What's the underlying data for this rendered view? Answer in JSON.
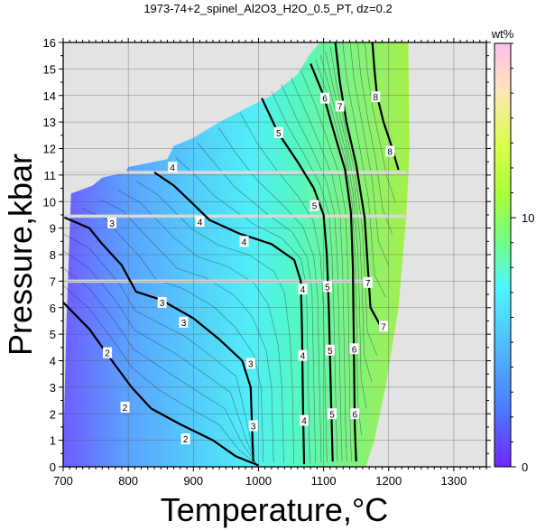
{
  "chart_data": {
    "type": "heatmap",
    "title": "1973-74+2_spinel_Al2O3_H2O_0.5_PT, dz=0.2",
    "xlabel": "Temperature,°C",
    "ylabel": "Pressure,kbar",
    "xlim": [
      700,
      1350
    ],
    "ylim": [
      0,
      16
    ],
    "x_ticks": [
      700,
      800,
      900,
      1000,
      1100,
      1200,
      1300
    ],
    "y_ticks": [
      0,
      1,
      2,
      3,
      4,
      5,
      6,
      7,
      8,
      9,
      10,
      11,
      12,
      13,
      14,
      15,
      16
    ],
    "grid": true,
    "colorbar": {
      "label": "wt%",
      "range": [
        0,
        17
      ],
      "ticks": [
        0,
        10
      ],
      "colormap": [
        "#6e28ff",
        "#4a7cff",
        "#4fc2ff",
        "#4cf5ff",
        "#6cff90",
        "#a6ff3a",
        "#d8ff4a",
        "#ffc0ee"
      ]
    },
    "contours": [
      {
        "level": 2,
        "points": [
          [
            700,
            6.2
          ],
          [
            740,
            5.2
          ],
          [
            775,
            4.0
          ],
          [
            805,
            3.0
          ],
          [
            835,
            2.2
          ],
          [
            880,
            1.6
          ],
          [
            930,
            1.0
          ],
          [
            965,
            0.4
          ],
          [
            1000,
            0.05
          ]
        ]
      },
      {
        "level": 3,
        "points": [
          [
            702,
            9.4
          ],
          [
            740,
            9.0
          ],
          [
            760,
            8.4
          ],
          [
            790,
            7.6
          ],
          [
            812,
            6.6
          ],
          [
            850,
            6.3
          ],
          [
            900,
            5.6
          ],
          [
            940,
            4.8
          ],
          [
            975,
            4.0
          ],
          [
            988,
            3.0
          ],
          [
            990,
            1.6
          ],
          [
            992,
            0.2
          ]
        ]
      },
      {
        "level": 4,
        "points": [
          [
            840,
            11.1
          ],
          [
            870,
            10.6
          ],
          [
            900,
            9.9
          ],
          [
            925,
            9.3
          ],
          [
            970,
            8.8
          ],
          [
            1020,
            8.4
          ],
          [
            1055,
            7.8
          ],
          [
            1065,
            7.0
          ],
          [
            1067,
            5.0
          ],
          [
            1068,
            3.0
          ],
          [
            1069,
            1.5
          ],
          [
            1070,
            0.1
          ]
        ]
      },
      {
        "level": 5,
        "points": [
          [
            1005,
            13.9
          ],
          [
            1030,
            12.6
          ],
          [
            1060,
            11.5
          ],
          [
            1085,
            10.5
          ],
          [
            1100,
            9.5
          ],
          [
            1105,
            8.0
          ],
          [
            1108,
            6.0
          ],
          [
            1110,
            4.0
          ],
          [
            1112,
            2.0
          ],
          [
            1114,
            0.2
          ]
        ]
      },
      {
        "level": 6,
        "points": [
          [
            1080,
            15.2
          ],
          [
            1100,
            14.0
          ],
          [
            1115,
            12.7
          ],
          [
            1133,
            11.2
          ],
          [
            1142,
            9.6
          ],
          [
            1145,
            7.5
          ],
          [
            1146,
            5.5
          ],
          [
            1147,
            3.5
          ],
          [
            1148,
            1.5
          ],
          [
            1150,
            0.2
          ]
        ]
      },
      {
        "level": 7,
        "points": [
          [
            1118,
            16.0
          ],
          [
            1125,
            14.5
          ],
          [
            1135,
            13.0
          ],
          [
            1150,
            11.4
          ],
          [
            1163,
            9.4
          ],
          [
            1168,
            7.5
          ],
          [
            1172,
            6.0
          ],
          [
            1190,
            5.2
          ]
        ]
      },
      {
        "level": 8,
        "points": [
          [
            1175,
            16.0
          ],
          [
            1178,
            15.0
          ],
          [
            1182,
            14.0
          ],
          [
            1192,
            13.0
          ],
          [
            1203,
            12.2
          ],
          [
            1215,
            11.2
          ]
        ]
      }
    ],
    "contour_labels": [
      {
        "text": "2",
        "x": 768,
        "y": 4.3
      },
      {
        "text": "2",
        "x": 795,
        "y": 2.25
      },
      {
        "text": "2",
        "x": 888,
        "y": 1.05
      },
      {
        "text": "3",
        "x": 775,
        "y": 9.2
      },
      {
        "text": "3",
        "x": 852,
        "y": 6.2
      },
      {
        "text": "3",
        "x": 885,
        "y": 5.45
      },
      {
        "text": "3",
        "x": 988,
        "y": 3.9
      },
      {
        "text": "3",
        "x": 992,
        "y": 1.55
      },
      {
        "text": "4",
        "x": 868,
        "y": 11.3
      },
      {
        "text": "4",
        "x": 910,
        "y": 9.25
      },
      {
        "text": "4",
        "x": 978,
        "y": 8.5
      },
      {
        "text": "4",
        "x": 1068,
        "y": 6.7
      },
      {
        "text": "4",
        "x": 1068,
        "y": 4.2
      },
      {
        "text": "4",
        "x": 1070,
        "y": 1.75
      },
      {
        "text": "5",
        "x": 1031,
        "y": 12.6
      },
      {
        "text": "5",
        "x": 1086,
        "y": 9.85
      },
      {
        "text": "5",
        "x": 1106,
        "y": 6.8
      },
      {
        "text": "5",
        "x": 1110,
        "y": 4.4
      },
      {
        "text": "5",
        "x": 1113,
        "y": 2.0
      },
      {
        "text": "6",
        "x": 1102,
        "y": 13.9
      },
      {
        "text": "6",
        "x": 1147,
        "y": 4.45
      },
      {
        "text": "6",
        "x": 1148,
        "y": 2.0
      },
      {
        "text": "7",
        "x": 1125,
        "y": 13.6
      },
      {
        "text": "7",
        "x": 1168,
        "y": 6.95
      },
      {
        "text": "7",
        "x": 1192,
        "y": 5.3
      },
      {
        "text": "8",
        "x": 1180,
        "y": 13.95
      },
      {
        "text": "8",
        "x": 1202,
        "y": 11.9
      }
    ],
    "data_boundary_upper": [
      [
        700,
        0.5
      ],
      [
        705,
        5.4
      ],
      [
        712,
        10.3
      ],
      [
        745,
        10.6
      ],
      [
        760,
        10.9
      ],
      [
        795,
        11.1
      ],
      [
        800,
        11.3
      ],
      [
        860,
        11.6
      ],
      [
        870,
        12.1
      ],
      [
        900,
        12.4
      ],
      [
        940,
        13.0
      ],
      [
        980,
        13.5
      ],
      [
        1020,
        14.0
      ],
      [
        1060,
        14.8
      ],
      [
        1080,
        15.6
      ],
      [
        1095,
        16.0
      ],
      [
        1230,
        16.0
      ]
    ],
    "data_boundary_lower_right": [
      [
        1230,
        16.0
      ],
      [
        1232,
        12.0
      ],
      [
        1227,
        9.5
      ],
      [
        1215,
        6.0
      ],
      [
        1195,
        3.0
      ],
      [
        1178,
        1.0
      ],
      [
        1165,
        0
      ]
    ],
    "data_gaps_pressure": [
      7.0,
      9.45,
      11.1
    ]
  }
}
